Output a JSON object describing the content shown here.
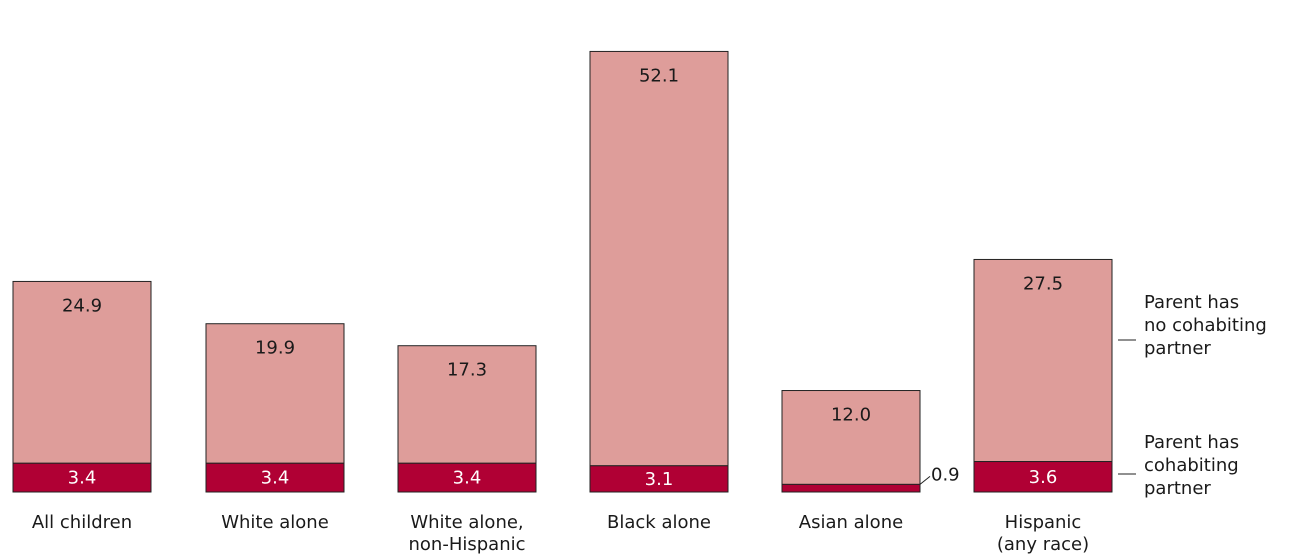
{
  "chart_data": {
    "type": "bar",
    "stacked": true,
    "categories": [
      [
        "All children"
      ],
      [
        "White alone"
      ],
      [
        "White alone,",
        "non-Hispanic"
      ],
      [
        "Black alone"
      ],
      [
        "Asian alone"
      ],
      [
        "Hispanic",
        "(any race)"
      ]
    ],
    "series": [
      {
        "name": "Parent has cohabiting partner",
        "legend_lines": [
          "Parent has",
          "cohabiting",
          "partner"
        ],
        "values": [
          3.4,
          3.4,
          3.4,
          3.1,
          0.9,
          3.6
        ],
        "labels": [
          "3.4",
          "3.4",
          "3.4",
          "3.1",
          "0.9",
          "3.6"
        ],
        "color": "#b00034"
      },
      {
        "name": "Parent has no cohabiting partner",
        "legend_lines": [
          "Parent has",
          "no cohabiting",
          "partner"
        ],
        "values": [
          24.9,
          19.9,
          17.3,
          52.1,
          12.0,
          27.5
        ],
        "labels": [
          "24.9",
          "19.9",
          "17.3",
          "52.1",
          "12.0",
          "27.5"
        ],
        "color": "#de9d9a"
      }
    ],
    "ylim": [
      0,
      57
    ],
    "grid": false,
    "legend_position": "right"
  }
}
